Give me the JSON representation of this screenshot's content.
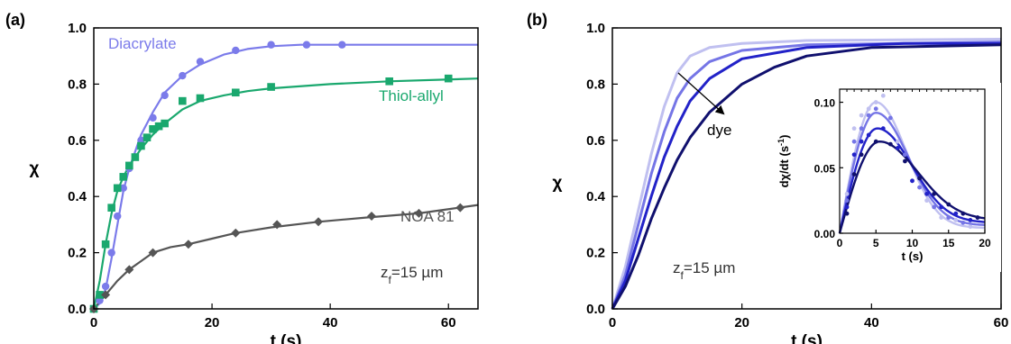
{
  "chart_data": [
    {
      "panel": "(a)",
      "type": "line",
      "xlabel": "t (s)",
      "ylabel": "χ",
      "xlim": [
        0,
        65
      ],
      "ylim": [
        0,
        1.0
      ],
      "xticks": [
        0,
        20,
        40,
        60
      ],
      "yticks": [
        0.0,
        0.2,
        0.4,
        0.6,
        0.8,
        1.0
      ],
      "annotation": {
        "prefix": "z",
        "sub": "f",
        "suffix": "=15 µm"
      },
      "series": [
        {
          "name": "Diacrylate",
          "color": "#7b7bea",
          "marker": "circle",
          "points": [
            [
              0,
              0
            ],
            [
              1,
              0.03
            ],
            [
              2,
              0.08
            ],
            [
              3,
              0.2
            ],
            [
              4,
              0.33
            ],
            [
              5,
              0.43
            ],
            [
              6,
              0.5
            ],
            [
              8,
              0.6
            ],
            [
              10,
              0.68
            ],
            [
              12,
              0.76
            ],
            [
              15,
              0.83
            ],
            [
              18,
              0.88
            ],
            [
              24,
              0.92
            ],
            [
              30,
              0.94
            ],
            [
              36,
              0.94
            ],
            [
              42,
              0.94
            ]
          ],
          "curve": [
            [
              0,
              0
            ],
            [
              1,
              0.02
            ],
            [
              2,
              0.07
            ],
            [
              3,
              0.18
            ],
            [
              4,
              0.3
            ],
            [
              5,
              0.42
            ],
            [
              6,
              0.5
            ],
            [
              8,
              0.62
            ],
            [
              10,
              0.7
            ],
            [
              12,
              0.77
            ],
            [
              15,
              0.83
            ],
            [
              18,
              0.87
            ],
            [
              22,
              0.905
            ],
            [
              26,
              0.925
            ],
            [
              30,
              0.935
            ],
            [
              35,
              0.94
            ],
            [
              45,
              0.94
            ],
            [
              65,
              0.94
            ]
          ]
        },
        {
          "name": "Thiol-allyl",
          "color": "#1aa86e",
          "marker": "square",
          "points": [
            [
              0,
              0
            ],
            [
              1,
              0.05
            ],
            [
              2,
              0.23
            ],
            [
              3,
              0.36
            ],
            [
              4,
              0.43
            ],
            [
              5,
              0.47
            ],
            [
              6,
              0.51
            ],
            [
              7,
              0.54
            ],
            [
              8,
              0.58
            ],
            [
              9,
              0.61
            ],
            [
              10,
              0.64
            ],
            [
              11,
              0.65
            ],
            [
              12,
              0.66
            ],
            [
              15,
              0.74
            ],
            [
              18,
              0.75
            ],
            [
              24,
              0.77
            ],
            [
              30,
              0.79
            ],
            [
              50,
              0.81
            ],
            [
              60,
              0.82
            ]
          ],
          "curve": [
            [
              0,
              0
            ],
            [
              1,
              0.1
            ],
            [
              2,
              0.23
            ],
            [
              3,
              0.34
            ],
            [
              4,
              0.42
            ],
            [
              5,
              0.47
            ],
            [
              6,
              0.51
            ],
            [
              8,
              0.57
            ],
            [
              10,
              0.62
            ],
            [
              12,
              0.66
            ],
            [
              15,
              0.71
            ],
            [
              18,
              0.74
            ],
            [
              22,
              0.76
            ],
            [
              26,
              0.775
            ],
            [
              30,
              0.785
            ],
            [
              40,
              0.8
            ],
            [
              50,
              0.81
            ],
            [
              65,
              0.82
            ]
          ]
        },
        {
          "name": "NOA 81",
          "color": "#555555",
          "marker": "diamond",
          "points": [
            [
              0,
              0
            ],
            [
              2,
              0.05
            ],
            [
              6,
              0.14
            ],
            [
              10,
              0.2
            ],
            [
              16,
              0.23
            ],
            [
              24,
              0.27
            ],
            [
              31,
              0.3
            ],
            [
              38,
              0.31
            ],
            [
              47,
              0.33
            ],
            [
              55,
              0.34
            ],
            [
              62,
              0.36
            ]
          ],
          "curve": [
            [
              0,
              0
            ],
            [
              2,
              0.05
            ],
            [
              4,
              0.1
            ],
            [
              6,
              0.14
            ],
            [
              8,
              0.17
            ],
            [
              10,
              0.2
            ],
            [
              13,
              0.22
            ],
            [
              16,
              0.23
            ],
            [
              20,
              0.25
            ],
            [
              24,
              0.27
            ],
            [
              30,
              0.29
            ],
            [
              38,
              0.31
            ],
            [
              46,
              0.325
            ],
            [
              55,
              0.34
            ],
            [
              65,
              0.37
            ]
          ]
        }
      ]
    },
    {
      "panel": "(b)",
      "type": "line",
      "xlabel": "t (s)",
      "ylabel": "χ",
      "xlim": [
        0,
        60
      ],
      "ylim": [
        0,
        1.0
      ],
      "xticks": [
        0,
        20,
        40,
        60
      ],
      "yticks": [
        0.0,
        0.2,
        0.4,
        0.6,
        0.8,
        1.0
      ],
      "annotation": {
        "prefix": "z",
        "sub": "f",
        "suffix": "=15 µm"
      },
      "arrow_label": "dye",
      "series": [
        {
          "color": "#c0c0f0",
          "points": [
            [
              0,
              0
            ],
            [
              2,
              0.15
            ],
            [
              4,
              0.35
            ],
            [
              6,
              0.55
            ],
            [
              8,
              0.72
            ],
            [
              10,
              0.84
            ],
            [
              12,
              0.9
            ],
            [
              15,
              0.93
            ],
            [
              20,
              0.945
            ],
            [
              30,
              0.955
            ],
            [
              60,
              0.96
            ]
          ]
        },
        {
          "color": "#7575e6",
          "points": [
            [
              0,
              0
            ],
            [
              2,
              0.12
            ],
            [
              4,
              0.3
            ],
            [
              6,
              0.48
            ],
            [
              8,
              0.63
            ],
            [
              10,
              0.75
            ],
            [
              12,
              0.82
            ],
            [
              15,
              0.88
            ],
            [
              20,
              0.92
            ],
            [
              30,
              0.94
            ],
            [
              60,
              0.95
            ]
          ]
        },
        {
          "color": "#2222c8",
          "points": [
            [
              0,
              0
            ],
            [
              2,
              0.1
            ],
            [
              4,
              0.25
            ],
            [
              6,
              0.4
            ],
            [
              8,
              0.54
            ],
            [
              10,
              0.65
            ],
            [
              12,
              0.74
            ],
            [
              15,
              0.82
            ],
            [
              20,
              0.89
            ],
            [
              30,
              0.93
            ],
            [
              45,
              0.945
            ],
            [
              60,
              0.945
            ]
          ]
        },
        {
          "color": "#10106e",
          "points": [
            [
              0,
              0
            ],
            [
              2,
              0.08
            ],
            [
              4,
              0.19
            ],
            [
              6,
              0.32
            ],
            [
              8,
              0.43
            ],
            [
              10,
              0.53
            ],
            [
              12,
              0.61
            ],
            [
              15,
              0.7
            ],
            [
              20,
              0.8
            ],
            [
              25,
              0.86
            ],
            [
              30,
              0.9
            ],
            [
              40,
              0.93
            ],
            [
              60,
              0.94
            ]
          ]
        }
      ],
      "inset": {
        "xlabel": "t (s)",
        "ylabel_parts": [
          "dχ/dt (s",
          "-1",
          ")"
        ],
        "xlim": [
          0,
          20
        ],
        "ylim": [
          0,
          0.11
        ],
        "xticks": [
          0,
          5,
          10,
          15,
          20
        ],
        "yticks": [
          0.0,
          0.05,
          0.1
        ],
        "ytick_labels": [
          "0.00",
          "0.05",
          "0.10"
        ],
        "series": [
          {
            "color": "#c0c0f0",
            "peak_t": 5.0,
            "peak": 0.1,
            "fall": 7.5,
            "tail": 0.004,
            "points": [
              [
                1,
                0.03
              ],
              [
                2,
                0.08
              ],
              [
                3,
                0.09
              ],
              [
                4,
                0.095
              ],
              [
                5,
                0.1
              ],
              [
                6,
                0.105
              ],
              [
                8,
                0.07
              ],
              [
                10,
                0.04
              ],
              [
                12,
                0.025
              ],
              [
                14,
                0.012
              ],
              [
                16,
                0.01
              ],
              [
                18,
                0.005
              ]
            ]
          },
          {
            "color": "#7575e6",
            "peak_t": 5.0,
            "peak": 0.092,
            "fall": 8.0,
            "tail": 0.006,
            "points": [
              [
                1,
                0.025
              ],
              [
                2,
                0.07
              ],
              [
                3,
                0.08
              ],
              [
                4,
                0.09
              ],
              [
                5,
                0.095
              ],
              [
                7,
                0.088
              ],
              [
                9,
                0.06
              ],
              [
                11,
                0.035
              ],
              [
                13,
                0.02
              ],
              [
                15,
                0.012
              ],
              [
                17,
                0.008
              ]
            ]
          },
          {
            "color": "#2222c8",
            "peak_t": 5.2,
            "peak": 0.08,
            "fall": 8.5,
            "tail": 0.008,
            "points": [
              [
                1,
                0.02
              ],
              [
                2,
                0.06
              ],
              [
                3,
                0.07
              ],
              [
                4,
                0.075
              ],
              [
                6,
                0.08
              ],
              [
                8,
                0.065
              ],
              [
                10,
                0.04
              ],
              [
                12,
                0.03
              ],
              [
                14,
                0.02
              ],
              [
                16,
                0.015
              ],
              [
                18,
                0.01
              ]
            ]
          },
          {
            "color": "#10106e",
            "peak_t": 5.5,
            "peak": 0.07,
            "fall": 9.5,
            "tail": 0.01,
            "points": [
              [
                1,
                0.015
              ],
              [
                2,
                0.045
              ],
              [
                3,
                0.06
              ],
              [
                5,
                0.07
              ],
              [
                7,
                0.068
              ],
              [
                9,
                0.055
              ],
              [
                11,
                0.042
              ],
              [
                13,
                0.03
              ],
              [
                15,
                0.022
              ],
              [
                17,
                0.015
              ],
              [
                19,
                0.012
              ]
            ]
          }
        ]
      }
    }
  ]
}
